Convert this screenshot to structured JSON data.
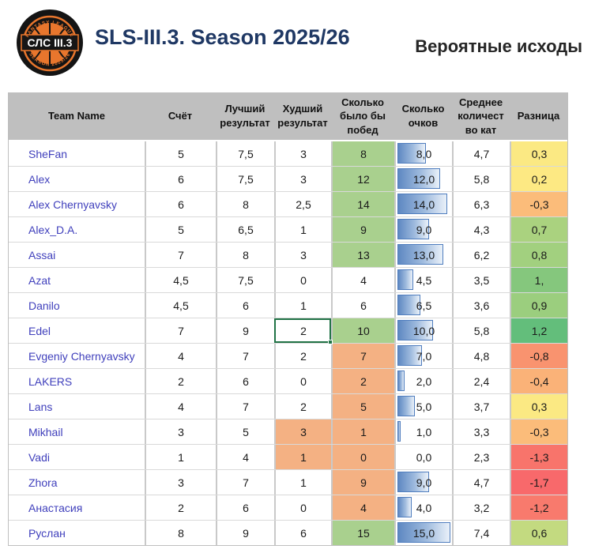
{
  "header": {
    "logo": {
      "name": "club-logo",
      "center_text": "СЛС III.3",
      "arc_top": "FANTASY LEAGUE",
      "arc_bottom": "SEASON 2025/26",
      "ring_color": "#E8762D",
      "badge_color": "#141414"
    },
    "title": "SLS-III.3. Season 2025/26",
    "title_color": "#1F3864",
    "subtitle": "Вероятные исходы",
    "subtitle_color": "#262626"
  },
  "table": {
    "header_bg": "#BFBFBF",
    "team_link_color": "#4040BC",
    "green_fill": "#A9D08E",
    "orange_fill": "#F4B183",
    "selection_color": "#217346",
    "databar_border": "#4F7DBE",
    "databar_max": 15,
    "columns": [
      "Team Name",
      "Счёт",
      "Лучший\nрезультат",
      "Худший\nрезультат",
      "Сколько\nбыло бы\nпобед",
      "Сколько\nочков",
      "Среднее\nколичест\nво кат",
      "Разница"
    ],
    "rows": [
      {
        "name": "SheFan",
        "score": "5",
        "best": "7,5",
        "worst": "3",
        "worst_bg": "#FFFFFF",
        "wins": "8",
        "wins_bg": "#A9D08E",
        "points_label": "8,0",
        "points_value": 8.0,
        "avg": "4,7",
        "diff": "0,3",
        "diff_bg": "#FBE983",
        "selected": false
      },
      {
        "name": "Alex",
        "score": "6",
        "best": "7,5",
        "worst": "3",
        "worst_bg": "#FFFFFF",
        "wins": "12",
        "wins_bg": "#A9D08E",
        "points_label": "12,0",
        "points_value": 12.0,
        "avg": "5,8",
        "diff": "0,2",
        "diff_bg": "#FDE983",
        "selected": false
      },
      {
        "name": "Alex Chernyavsky",
        "score": "6",
        "best": "8",
        "worst": "2,5",
        "worst_bg": "#FFFFFF",
        "wins": "14",
        "wins_bg": "#A9D08E",
        "points_label": "14,0",
        "points_value": 14.0,
        "avg": "6,3",
        "diff": "-0,3",
        "diff_bg": "#FBBC7A",
        "selected": false
      },
      {
        "name": "Alex_D.A.",
        "score": "5",
        "best": "6,5",
        "worst": "1",
        "worst_bg": "#FFFFFF",
        "wins": "9",
        "wins_bg": "#A9D08E",
        "points_label": "9,0",
        "points_value": 9.0,
        "avg": "4,3",
        "diff": "0,7",
        "diff_bg": "#AAD27F",
        "selected": false
      },
      {
        "name": "Assai",
        "score": "7",
        "best": "8",
        "worst": "3",
        "worst_bg": "#FFFFFF",
        "wins": "13",
        "wins_bg": "#A9D08E",
        "points_label": "13,0",
        "points_value": 13.0,
        "avg": "6,2",
        "diff": "0,8",
        "diff_bg": "#A2D07F",
        "selected": false
      },
      {
        "name": "Azat",
        "score": "4,5",
        "best": "7,5",
        "worst": "0",
        "worst_bg": "#FFFFFF",
        "wins": "4",
        "wins_bg": "#FFFFFF",
        "points_label": "4,5",
        "points_value": 4.5,
        "avg": "3,5",
        "diff": "1,",
        "diff_bg": "#85C77D",
        "selected": false
      },
      {
        "name": "Danilo",
        "score": "4,5",
        "best": "6",
        "worst": "1",
        "worst_bg": "#FFFFFF",
        "wins": "6",
        "wins_bg": "#FFFFFF",
        "points_label": "6,5",
        "points_value": 6.5,
        "avg": "3,6",
        "diff": "0,9",
        "diff_bg": "#9BCE7E",
        "selected": false
      },
      {
        "name": "Edel",
        "score": "7",
        "best": "9",
        "worst": "2",
        "worst_bg": "#FFFFFF",
        "wins": "10",
        "wins_bg": "#A9D08E",
        "points_label": "10,0",
        "points_value": 10.0,
        "avg": "5,8",
        "diff": "1,2",
        "diff_bg": "#63BE7B",
        "selected": true
      },
      {
        "name": "Evgeniy Chernyavsky",
        "score": "4",
        "best": "7",
        "worst": "2",
        "worst_bg": "#FFFFFF",
        "wins": "7",
        "wins_bg": "#F4B183",
        "points_label": "7,0",
        "points_value": 7.0,
        "avg": "4,8",
        "diff": "-0,8",
        "diff_bg": "#F9936F",
        "selected": false
      },
      {
        "name": "LAKERS",
        "score": "2",
        "best": "6",
        "worst": "0",
        "worst_bg": "#FFFFFF",
        "wins": "2",
        "wins_bg": "#F4B183",
        "points_label": "2,0",
        "points_value": 2.0,
        "avg": "2,4",
        "diff": "-0,4",
        "diff_bg": "#FAB278",
        "selected": false
      },
      {
        "name": "Lans",
        "score": "4",
        "best": "7",
        "worst": "2",
        "worst_bg": "#FFFFFF",
        "wins": "5",
        "wins_bg": "#F4B183",
        "points_label": "5,0",
        "points_value": 5.0,
        "avg": "3,7",
        "diff": "0,3",
        "diff_bg": "#FBE983",
        "selected": false
      },
      {
        "name": "Mikhail",
        "score": "3",
        "best": "5",
        "worst": "3",
        "worst_bg": "#F4B183",
        "wins": "1",
        "wins_bg": "#F4B183",
        "points_label": "1,0",
        "points_value": 1.0,
        "avg": "3,3",
        "diff": "-0,3",
        "diff_bg": "#FBBC7A",
        "selected": false
      },
      {
        "name": "Vadi",
        "score": "1",
        "best": "4",
        "worst": "1",
        "worst_bg": "#F4B183",
        "wins": "0",
        "wins_bg": "#F4B183",
        "points_label": "0,0",
        "points_value": 0.0,
        "avg": "2,3",
        "diff": "-1,3",
        "diff_bg": "#F8746B",
        "selected": false
      },
      {
        "name": "Zhora",
        "score": "3",
        "best": "7",
        "worst": "1",
        "worst_bg": "#FFFFFF",
        "wins": "9",
        "wins_bg": "#F4B183",
        "points_label": "9,0",
        "points_value": 9.0,
        "avg": "4,7",
        "diff": "-1,7",
        "diff_bg": "#F8696B",
        "selected": false
      },
      {
        "name": "Анастасия",
        "score": "2",
        "best": "6",
        "worst": "0",
        "worst_bg": "#FFFFFF",
        "wins": "4",
        "wins_bg": "#F4B183",
        "points_label": "4,0",
        "points_value": 4.0,
        "avg": "3,2",
        "diff": "-1,2",
        "diff_bg": "#F87A6D",
        "selected": false
      },
      {
        "name": "Руслан",
        "score": "8",
        "best": "9",
        "worst": "6",
        "worst_bg": "#FFFFFF",
        "wins": "15",
        "wins_bg": "#A9D08E",
        "points_label": "15,0",
        "points_value": 15.0,
        "avg": "7,4",
        "diff": "0,6",
        "diff_bg": "#C3DA80",
        "selected": false
      }
    ]
  }
}
